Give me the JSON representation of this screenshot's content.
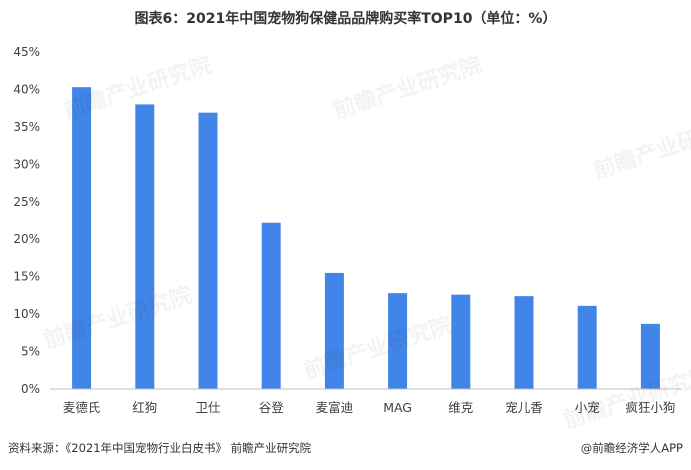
{
  "title": "图表6：2021年中国宠物狗保健品品牌购买率TOP10（单位：%）",
  "source": "资料来源：《2021年中国宠物行业白皮书》 前瞻产业研究院",
  "brand": "@前瞻经济学人APP",
  "watermark": "前瞻产业研究院",
  "colors": {
    "bar": "#4285e8",
    "axis": "#bfbfbf",
    "text": "#404040"
  },
  "chart_data": {
    "type": "bar",
    "title": "图表6：2021年中国宠物狗保健品品牌购买率TOP10（单位：%）",
    "categories": [
      "麦德氏",
      "红狗",
      "卫仕",
      "谷登",
      "麦富迪",
      "MAG",
      "维克",
      "宠儿香",
      "小宠",
      "疯狂小狗"
    ],
    "values": [
      40.3,
      38.0,
      36.9,
      22.2,
      15.5,
      12.8,
      12.6,
      12.4,
      11.1,
      8.7
    ],
    "ylim": [
      0,
      45
    ],
    "yticks": [
      "0%",
      "5%",
      "10%",
      "15%",
      "20%",
      "25%",
      "30%",
      "35%",
      "40%",
      "45%"
    ],
    "grid": false,
    "legend": "none"
  }
}
